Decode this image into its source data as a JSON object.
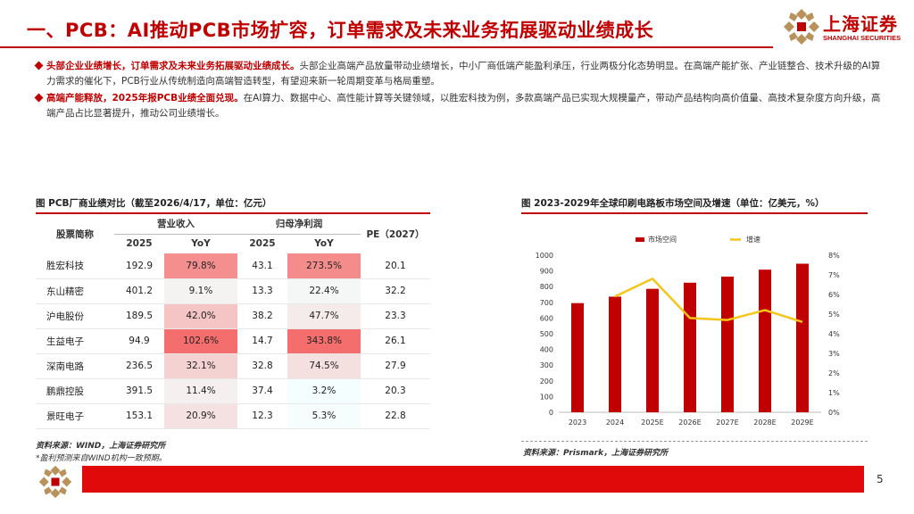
{
  "header": {
    "title": "一、PCB：AI推动PCB市场扩容，订单需求及未来业务拓展驱动业绩成长",
    "logo_cn": "上海证券",
    "logo_en": "SHANGHAI SECURITIES",
    "accent": "#c00000"
  },
  "bullets": [
    {
      "highlight": "头部企业业绩增长，订单需求及未来业务拓展驱动业绩成长。",
      "text": "头部企业高端产品放量带动业绩增长，中小厂商低端产能盈利承压，行业两极分化态势明显。在高端产能扩张、产业链整合、技术升级的AI算力需求的催化下，PCB行业从传统制造向高端智造转型，有望迎来新一轮周期变革与格局重塑。"
    },
    {
      "highlight": "高端产能释放，2025年报PCB业绩全面兑现。",
      "text": "在AI算力、数据中心、高性能计算等关键领域，以胜宏科技为例，多款高端产品已实现大规模量产，带动产品结构向高价值量、高技术复杂度方向升级，高端产品占比显著提升，推动公司业绩增长。"
    }
  ],
  "table": {
    "caption": "图  PCB厂商业绩对比（截至2026/4/17，单位：亿元）",
    "col_stock": "股票简称",
    "group_revenue": "营业收入",
    "group_profit": "归母净利润",
    "col_pe": "PE（2027）",
    "sub_year": "2025",
    "sub_yoy": "YoY",
    "rows": [
      {
        "name": "胜宏科技",
        "rev": "192.9",
        "rev_yoy": "79.8%",
        "rev_yoy_v": 79.8,
        "np": "43.1",
        "np_yoy": "273.5%",
        "np_yoy_v": 273.5,
        "pe": "20.1"
      },
      {
        "name": "东山精密",
        "rev": "401.2",
        "rev_yoy": "9.1%",
        "rev_yoy_v": 9.1,
        "np": "13.3",
        "np_yoy": "22.4%",
        "np_yoy_v": 22.4,
        "pe": "32.2"
      },
      {
        "name": "沪电股份",
        "rev": "189.5",
        "rev_yoy": "42.0%",
        "rev_yoy_v": 42.0,
        "np": "38.2",
        "np_yoy": "47.7%",
        "np_yoy_v": 47.7,
        "pe": "23.3"
      },
      {
        "name": "生益电子",
        "rev": "94.9",
        "rev_yoy": "102.6%",
        "rev_yoy_v": 102.6,
        "np": "14.7",
        "np_yoy": "343.8%",
        "np_yoy_v": 343.8,
        "pe": "26.1"
      },
      {
        "name": "深南电路",
        "rev": "236.5",
        "rev_yoy": "32.1%",
        "rev_yoy_v": 32.1,
        "np": "32.8",
        "np_yoy": "74.5%",
        "np_yoy_v": 74.5,
        "pe": "27.9"
      },
      {
        "name": "鹏鼎控股",
        "rev": "391.5",
        "rev_yoy": "11.4%",
        "rev_yoy_v": 11.4,
        "np": "37.4",
        "np_yoy": "3.2%",
        "np_yoy_v": 3.2,
        "pe": "20.3"
      },
      {
        "name": "景旺电子",
        "rev": "153.1",
        "rev_yoy": "20.9%",
        "rev_yoy_v": 20.9,
        "np": "12.3",
        "np_yoy": "5.3%",
        "np_yoy_v": 5.3,
        "pe": "22.8"
      }
    ],
    "source": "资料来源：WIND，上海证券研究所",
    "note": "*盈利预测来自WIND机构一致预期。"
  },
  "chart_data": {
    "type": "bar",
    "title": "图  2023-2029年全球印刷电路板市场空间及增速（单位：亿美元，%）",
    "categories": [
      "2023",
      "2024",
      "2025E",
      "2026E",
      "2027E",
      "2028E",
      "2029E"
    ],
    "series": [
      {
        "name": "市场空间",
        "type": "bar",
        "axis": "left",
        "values": [
          695,
          736,
          786,
          825,
          864,
          908,
          946
        ],
        "color": "#c00000"
      },
      {
        "name": "增速",
        "type": "line",
        "axis": "right",
        "values": [
          null,
          5.9,
          6.8,
          4.8,
          4.7,
          5.2,
          4.6
        ],
        "color": "#f5c518"
      }
    ],
    "ylim": [
      0,
      1000
    ],
    "yticks": [
      "0",
      "100",
      "200",
      "300",
      "400",
      "500",
      "600",
      "700",
      "800",
      "900",
      "1000"
    ],
    "y2lim": [
      0,
      8
    ],
    "y2ticks": [
      "0%",
      "1%",
      "2%",
      "3%",
      "4%",
      "5%",
      "6%",
      "7%",
      "8%"
    ],
    "legend": "top",
    "grid": false,
    "source": "资料来源：Prismark，上海证券研究所"
  },
  "footer": {
    "page": "5",
    "bar_color": "#e10a0a"
  }
}
